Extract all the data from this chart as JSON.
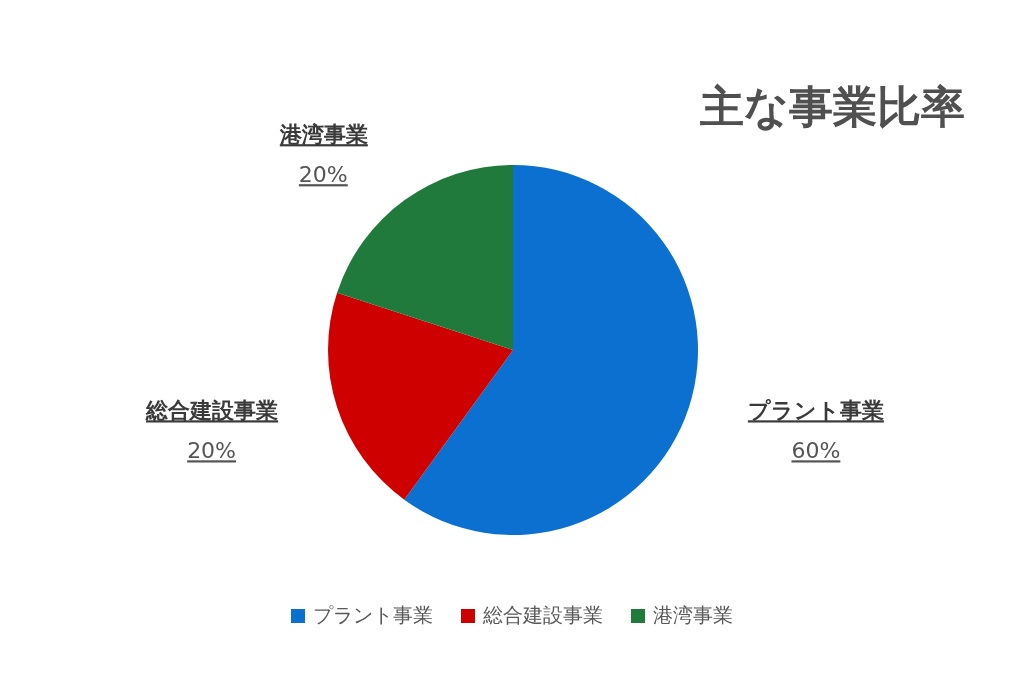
{
  "chart_data": {
    "type": "pie",
    "title": "主な事業比率",
    "categories": [
      "プラント事業",
      "総合建設事業",
      "港湾事業"
    ],
    "values": [
      60,
      20,
      20
    ],
    "value_labels": [
      "60%",
      "20%",
      "20%"
    ],
    "colors": [
      "#0b70d0",
      "#cf0000",
      "#1f7a3c"
    ],
    "legend": "bottom"
  }
}
